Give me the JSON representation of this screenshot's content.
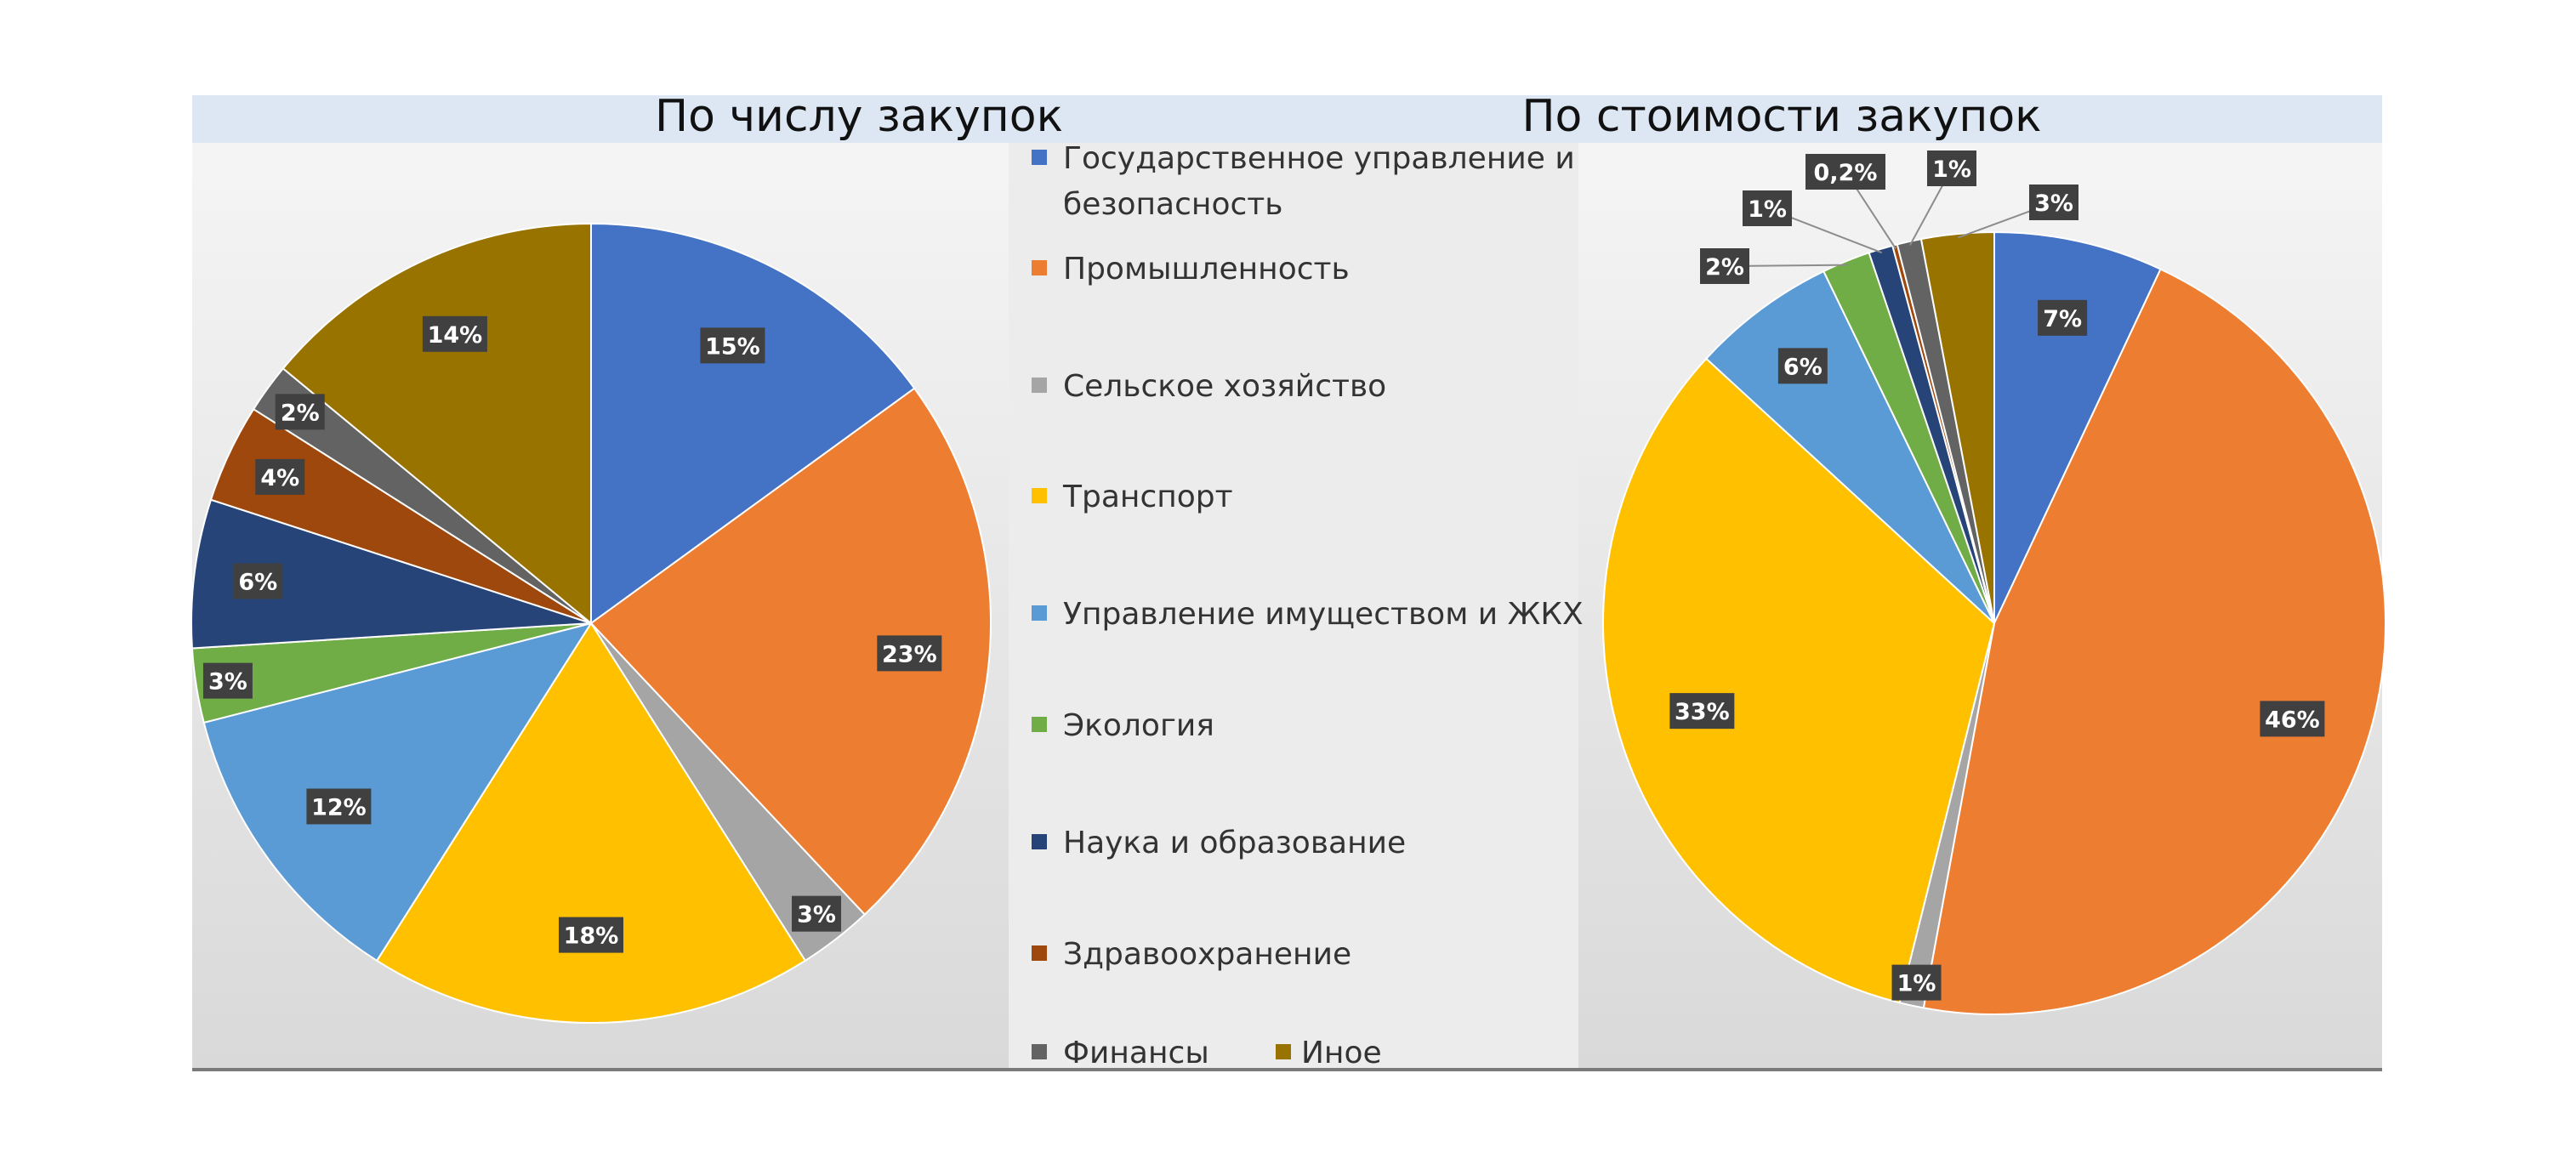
{
  "chart_data": [
    {
      "type": "pie",
      "title": "По числу закупок",
      "categories": [
        "Государственное управление и безопасность",
        "Промышленность",
        "Сельское хозяйство",
        "Транспорт",
        "Управление имуществом и ЖКХ",
        "Экология",
        "Наука и образование",
        "Здравоохранение",
        "Финансы",
        "Иное"
      ],
      "values": [
        15,
        23,
        3,
        18,
        12,
        3,
        6,
        4,
        2,
        14
      ],
      "labels": [
        "15%",
        "23%",
        "3%",
        "18%",
        "12%",
        "3%",
        "6%",
        "4%",
        "2%",
        "14%"
      ]
    },
    {
      "type": "pie",
      "title": "По стоимости закупок",
      "categories": [
        "Государственное управление и безопасность",
        "Промышленность",
        "Сельское хозяйство",
        "Транспорт",
        "Управление имуществом и ЖКХ",
        "Экология",
        "Наука и образование",
        "Здравоохранение",
        "Финансы",
        "Иное"
      ],
      "values": [
        7,
        46,
        1,
        33,
        6,
        2,
        1,
        0.2,
        1,
        3
      ],
      "labels": [
        "7%",
        "46%",
        "1%",
        "33%",
        "6%",
        "2%",
        "1%",
        "0,2%",
        "1%",
        "3%"
      ]
    }
  ],
  "legend": {
    "placement": "center",
    "items": [
      {
        "label": "Государственное управление и",
        "label2": "безопасность",
        "color": "#4472c4"
      },
      {
        "label": "Промышленность",
        "color": "#ed7d31"
      },
      {
        "label": "Сельское хозяйство",
        "color": "#a5a5a5"
      },
      {
        "label": "Транспорт",
        "color": "#ffc000"
      },
      {
        "label": "Управление имуществом и ЖКХ",
        "color": "#5b9bd5"
      },
      {
        "label": "Экология",
        "color": "#70ad47"
      },
      {
        "label": "Наука и образование",
        "color": "#264478"
      },
      {
        "label": "Здравоохранение",
        "color": "#9e480e"
      },
      {
        "label": "Финансы",
        "color": "#636363"
      },
      {
        "label": "Иное",
        "color": "#997300"
      }
    ]
  },
  "colors": {
    "label_bg": "#404040",
    "title_band": "#dde7f4"
  }
}
